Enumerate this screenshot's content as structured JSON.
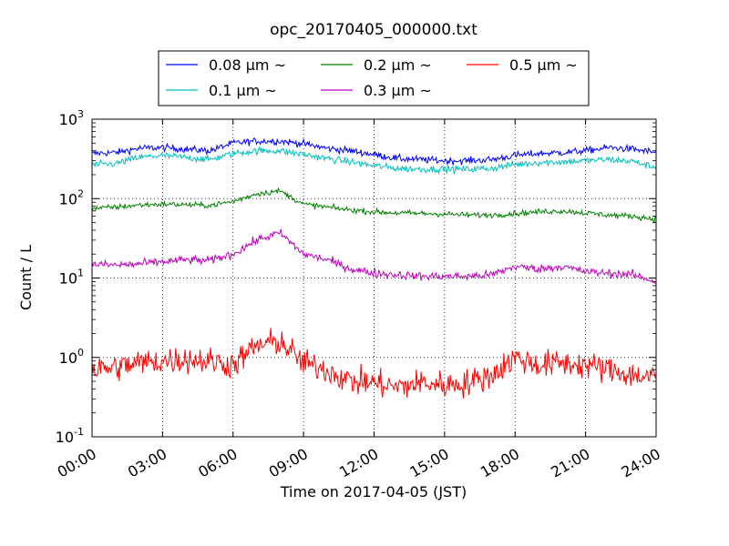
{
  "chart_data": {
    "type": "line",
    "title": "opc_20170405_000000.txt",
    "xlabel": "Time on 2017-04-05 (JST)",
    "ylabel": "Count / L",
    "yscale": "log",
    "ylim": [
      0.1,
      1000
    ],
    "xlim": [
      "00:00",
      "24:00"
    ],
    "x_tick_labels": [
      "00:00",
      "03:00",
      "06:00",
      "09:00",
      "12:00",
      "15:00",
      "18:00",
      "21:00",
      "24:00"
    ],
    "y_tick_labels": [
      {
        "base": "10",
        "exp": "-1"
      },
      {
        "base": "10",
        "exp": "0"
      },
      {
        "base": "10",
        "exp": "1"
      },
      {
        "base": "10",
        "exp": "2"
      },
      {
        "base": "10",
        "exp": "3"
      }
    ],
    "grid": true,
    "legend_placement": "top-center",
    "x": [
      "00:00",
      "01:00",
      "02:00",
      "03:00",
      "04:00",
      "05:00",
      "06:00",
      "07:00",
      "08:00",
      "09:00",
      "10:00",
      "11:00",
      "12:00",
      "13:00",
      "14:00",
      "15:00",
      "16:00",
      "17:00",
      "18:00",
      "19:00",
      "20:00",
      "21:00",
      "22:00",
      "23:00",
      "24:00"
    ],
    "series": [
      {
        "name": "0.08 μm ~",
        "color": "#0000ff",
        "noise": 0.05,
        "values": [
          370,
          380,
          430,
          440,
          420,
          400,
          500,
          530,
          530,
          490,
          430,
          400,
          360,
          320,
          310,
          300,
          300,
          310,
          350,
          370,
          380,
          400,
          440,
          420,
          380
        ]
      },
      {
        "name": "0.1 μm ~",
        "color": "#00bfbf",
        "noise": 0.05,
        "values": [
          265,
          275,
          330,
          350,
          330,
          310,
          370,
          400,
          400,
          360,
          320,
          290,
          260,
          240,
          235,
          235,
          235,
          240,
          270,
          285,
          290,
          300,
          310,
          295,
          245
        ]
      },
      {
        "name": "0.2 μm ~",
        "color": "#008000",
        "noise": 0.04,
        "values": [
          75,
          78,
          83,
          85,
          84,
          82,
          92,
          115,
          125,
          85,
          78,
          72,
          68,
          66,
          65,
          64,
          62,
          62,
          65,
          68,
          70,
          66,
          62,
          60,
          55
        ]
      },
      {
        "name": "0.3 μm ~",
        "color": "#bf00bf",
        "noise": 0.06,
        "values": [
          15,
          14.5,
          15,
          16,
          17,
          16.5,
          20,
          30,
          37,
          20,
          17,
          13,
          11.5,
          11,
          10.5,
          10.5,
          10.5,
          11,
          14,
          13,
          14,
          12,
          11.5,
          11,
          9
        ]
      },
      {
        "name": "0.5 μm ~",
        "color": "#ff0000",
        "noise": 0.2,
        "values": [
          0.7,
          0.75,
          0.85,
          0.9,
          0.95,
          0.9,
          0.8,
          1.4,
          1.6,
          0.85,
          0.7,
          0.5,
          0.48,
          0.42,
          0.48,
          0.45,
          0.48,
          0.6,
          1.0,
          0.8,
          0.85,
          0.8,
          0.7,
          0.6,
          0.55
        ]
      }
    ]
  }
}
